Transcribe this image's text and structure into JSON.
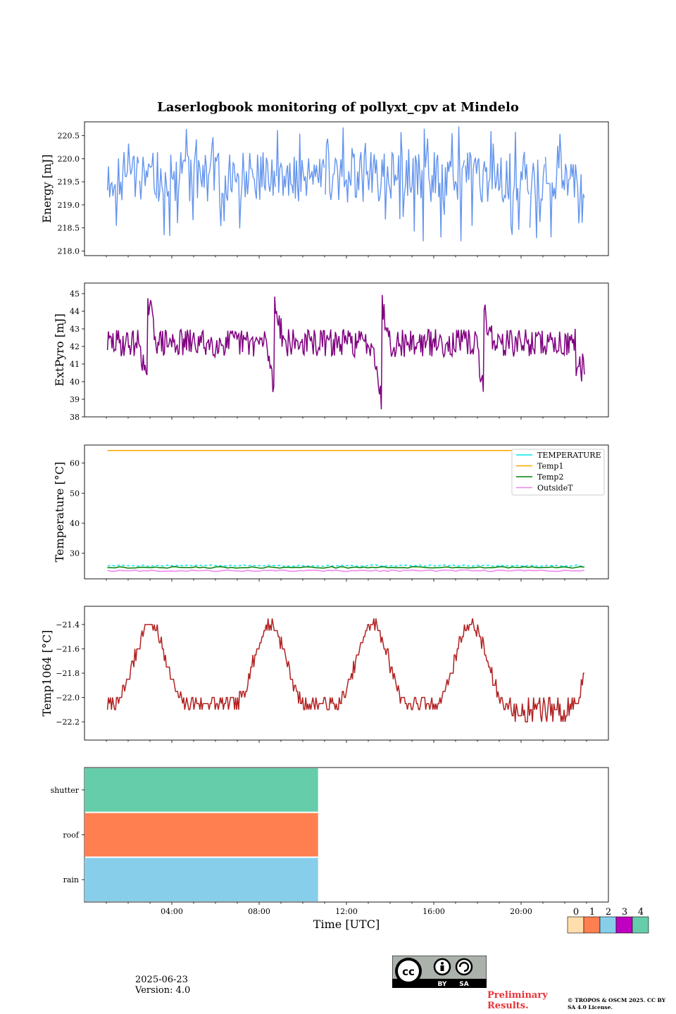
{
  "title": "Laserlogbook monitoring of pollyxt_cpv at Mindelo",
  "footer": {
    "date": "2025-06-23",
    "version": "Version: 4.0",
    "preliminary": "Preliminary Results.",
    "copyright": "© TROPOS & OSCM 2025. CC BY SA 4.0 License.",
    "cc_by": "BY",
    "cc_sa": "SA"
  },
  "colors": {
    "energy": "#6495ed",
    "extpyro": "#800080",
    "temperature": "#00e5ee",
    "temp1": "#ffa500",
    "temp2": "#008000",
    "outsideT": "#ee82ee",
    "temp1064": "#b22222",
    "status_colors": [
      "#ffdead",
      "#ff7f50",
      "#87ceeb",
      "#c000c0",
      "#66cdaa"
    ]
  },
  "chart_data": [
    {
      "type": "line",
      "panel": "energy",
      "ylabel": "Energy [mJ]",
      "ylim": [
        217.9,
        220.8
      ],
      "yticks": [
        218.0,
        218.5,
        219.0,
        219.5,
        220.0,
        220.5
      ],
      "ytick_labels": [
        "218.0",
        "218.5",
        "219.0",
        "219.5",
        "220.0",
        "220.5"
      ],
      "xlim": [
        0,
        24
      ],
      "series": [
        {
          "color": "#6495ed",
          "x_start": 1.05,
          "x_end": 22.9,
          "baseline": 219.6,
          "spread": 0.55,
          "n": 430,
          "seed": 11
        }
      ]
    },
    {
      "type": "line",
      "panel": "extpyro",
      "ylabel": "ExtPyro [mJ]",
      "ylim": [
        38,
        45.6
      ],
      "yticks": [
        38,
        39,
        40,
        41,
        42,
        43,
        44,
        45
      ],
      "ytick_labels": [
        "38",
        "39",
        "40",
        "41",
        "42",
        "43",
        "44",
        "45"
      ],
      "xlim": [
        0,
        24
      ],
      "series": [
        {
          "color": "#800080",
          "x_start": 1.05,
          "x_end": 22.9,
          "baseline": 42.2,
          "spread": 0.8,
          "n": 520,
          "seed": 29,
          "events": [
            [
              2.9,
              39.0,
              45.2
            ],
            [
              8.7,
              39.0,
              45.3
            ],
            [
              13.6,
              38.4,
              45.1
            ],
            [
              18.3,
              38.7,
              44.5
            ]
          ]
        }
      ]
    },
    {
      "type": "line",
      "panel": "temperature",
      "ylabel": "Temperature [°C]",
      "ylim": [
        21.5,
        66
      ],
      "yticks": [
        30,
        40,
        50,
        60
      ],
      "ytick_labels": [
        "30",
        "40",
        "50",
        "60"
      ],
      "xlim": [
        0,
        24
      ],
      "legend_position": "upper right",
      "series": [
        {
          "name": "TEMPERATURE",
          "color": "#00e5ee",
          "value": 25.9,
          "dashed": true
        },
        {
          "name": "Temp1",
          "color": "#ffa500",
          "value": 64.2
        },
        {
          "name": "Temp2",
          "color": "#008000",
          "value": 25.3
        },
        {
          "name": "OutsideT",
          "color": "#ee82ee",
          "value": 24.2
        }
      ]
    },
    {
      "type": "line",
      "panel": "temp1064",
      "ylabel": "Temp1064 [°C]",
      "ylim": [
        -22.35,
        -21.25
      ],
      "yticks": [
        -22.2,
        -22.0,
        -21.8,
        -21.6,
        -21.4
      ],
      "ytick_labels": [
        "−22.2",
        "−22.0",
        "−21.8",
        "−21.6",
        "−21.4"
      ],
      "xlim": [
        0,
        24
      ],
      "series": [
        {
          "color": "#b22222",
          "x_start": 1.05,
          "x_end": 22.9,
          "n": 470,
          "seed": 7,
          "peaks": [
            3.0,
            8.5,
            13.2,
            17.7
          ],
          "period": 4.65,
          "low": -22.05,
          "high": -21.4
        }
      ]
    },
    {
      "type": "bar",
      "panel": "status",
      "categories": [
        "shutter",
        "roof",
        "rain"
      ],
      "values": [
        [
          0,
          10.7
        ],
        [
          0,
          10.7
        ],
        [
          0,
          10.7
        ]
      ],
      "bar_colors": [
        "#66cdaa",
        "#ff7f50",
        "#87ceeb"
      ],
      "xlim": [
        0,
        24
      ],
      "xlabel": "Time [UTC]",
      "xticks": [
        4,
        8,
        12,
        16,
        20
      ],
      "xtick_labels": [
        "04:00",
        "08:00",
        "12:00",
        "16:00",
        "20:00"
      ],
      "status_legend": [
        "0",
        "1",
        "2",
        "3",
        "4"
      ]
    }
  ]
}
